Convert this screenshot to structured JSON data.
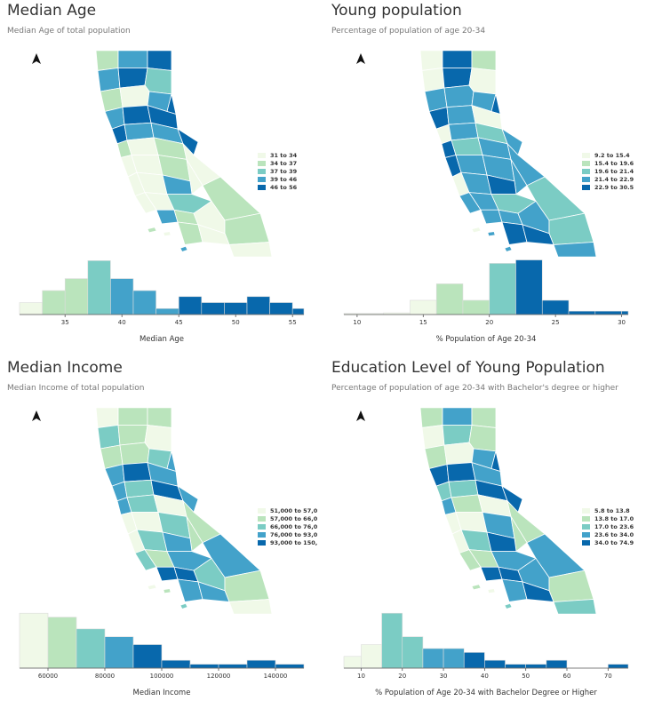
{
  "chart_data": [
    {
      "type": "bar",
      "title": "Median Age",
      "subtitle": "Median Age of total population",
      "xlabel": "Median Age",
      "legend": {
        "placement": "right",
        "entries": [
          "31 to 34",
          "34 to 37",
          "37 to 39",
          "39 to 46",
          "46 to 56"
        ],
        "colors": [
          "#f0f9e8",
          "#bae4bc",
          "#7bccc4",
          "#43a2ca",
          "#0868ac"
        ]
      },
      "bins": [
        [
          31,
          33,
          2
        ],
        [
          33,
          35,
          4
        ],
        [
          35,
          37,
          6
        ],
        [
          37,
          39,
          9
        ],
        [
          39,
          41,
          6
        ],
        [
          41,
          43,
          4
        ],
        [
          43,
          45,
          1
        ],
        [
          45,
          47,
          3
        ],
        [
          47,
          49,
          2
        ],
        [
          49,
          51,
          2
        ],
        [
          51,
          53,
          3
        ],
        [
          53,
          55,
          2
        ],
        [
          55,
          56,
          1
        ]
      ],
      "xlim": [
        31,
        56
      ],
      "xticks": [
        35,
        40,
        45,
        50,
        55
      ],
      "ylim": [
        0,
        9.5
      ]
    },
    {
      "type": "bar",
      "title": "Young population",
      "subtitle": "Percentage of population of age 20-34",
      "xlabel": "% Population of Age 20-34",
      "legend": {
        "placement": "right",
        "entries": [
          "9.2 to 15.4",
          "15.4 to 19.6",
          "19.6 to 21.4",
          "21.4 to 22.9",
          "22.9 to 30.5"
        ],
        "colors": [
          "#f0f9e8",
          "#bae4bc",
          "#7bccc4",
          "#43a2ca",
          "#0868ac"
        ]
      },
      "bins": [
        [
          9,
          12,
          0.2
        ],
        [
          12,
          14,
          0.3
        ],
        [
          14,
          16,
          2.5
        ],
        [
          16,
          18,
          5.4
        ],
        [
          18,
          20,
          2.5
        ],
        [
          20,
          22,
          9
        ],
        [
          22,
          24,
          9.6
        ],
        [
          24,
          26,
          2.5
        ],
        [
          26,
          28,
          0.6
        ],
        [
          28,
          30,
          0.6
        ],
        [
          30,
          30.5,
          0.6
        ]
      ],
      "xlim": [
        9,
        30.5
      ],
      "xticks": [
        10,
        15,
        20,
        25,
        30
      ],
      "ylim": [
        0,
        10
      ]
    },
    {
      "type": "bar",
      "title": "Median Income",
      "subtitle": "Median Income of total population",
      "xlabel": "Median Income",
      "legend": {
        "placement": "right",
        "entries": [
          "51,000 to 57,0",
          "57,000 to 66,0",
          "66,000 to 76,0",
          "76,000 to 93,0",
          "93,000 to 150,"
        ],
        "colors": [
          "#f0f9e8",
          "#bae4bc",
          "#7bccc4",
          "#43a2ca",
          "#0868ac"
        ]
      },
      "bins": [
        [
          50000,
          60000,
          14
        ],
        [
          60000,
          70000,
          13
        ],
        [
          70000,
          80000,
          10
        ],
        [
          80000,
          90000,
          8
        ],
        [
          90000,
          100000,
          6
        ],
        [
          100000,
          110000,
          2
        ],
        [
          110000,
          120000,
          1
        ],
        [
          120000,
          130000,
          1
        ],
        [
          130000,
          140000,
          2
        ],
        [
          140000,
          150000,
          1
        ]
      ],
      "xlim": [
        50000,
        150000
      ],
      "xticks": [
        60000,
        80000,
        100000,
        120000,
        140000
      ],
      "ylim": [
        0,
        14.5
      ]
    },
    {
      "type": "bar",
      "title": "Education Level of Young Population",
      "subtitle": "Percentage of population of age 20-34 with Bachelor's degree or higher",
      "xlabel": "% Population of Age 20-34 with Bachelor Degree or Higher",
      "legend": {
        "placement": "right",
        "entries": [
          "5.8 to 13.8",
          "13.8 to 17.0",
          "17.0 to 23.6",
          "23.6 to 34.0",
          "34.0 to 74.9"
        ],
        "colors": [
          "#f0f9e8",
          "#bae4bc",
          "#7bccc4",
          "#43a2ca",
          "#0868ac"
        ]
      },
      "bins": [
        [
          5.8,
          10,
          3
        ],
        [
          10,
          15,
          6
        ],
        [
          15,
          20,
          14
        ],
        [
          20,
          25,
          8
        ],
        [
          25,
          30,
          5
        ],
        [
          30,
          35,
          5
        ],
        [
          35,
          40,
          4
        ],
        [
          40,
          45,
          2
        ],
        [
          45,
          50,
          1
        ],
        [
          50,
          55,
          1
        ],
        [
          55,
          60,
          2
        ],
        [
          60,
          65,
          0
        ],
        [
          65,
          70,
          0
        ],
        [
          70,
          74.9,
          1
        ]
      ],
      "xlim": [
        5.8,
        74.9
      ],
      "xticks": [
        10,
        20,
        30,
        40,
        50,
        60,
        70
      ],
      "ylim": [
        0,
        14.5
      ]
    }
  ]
}
